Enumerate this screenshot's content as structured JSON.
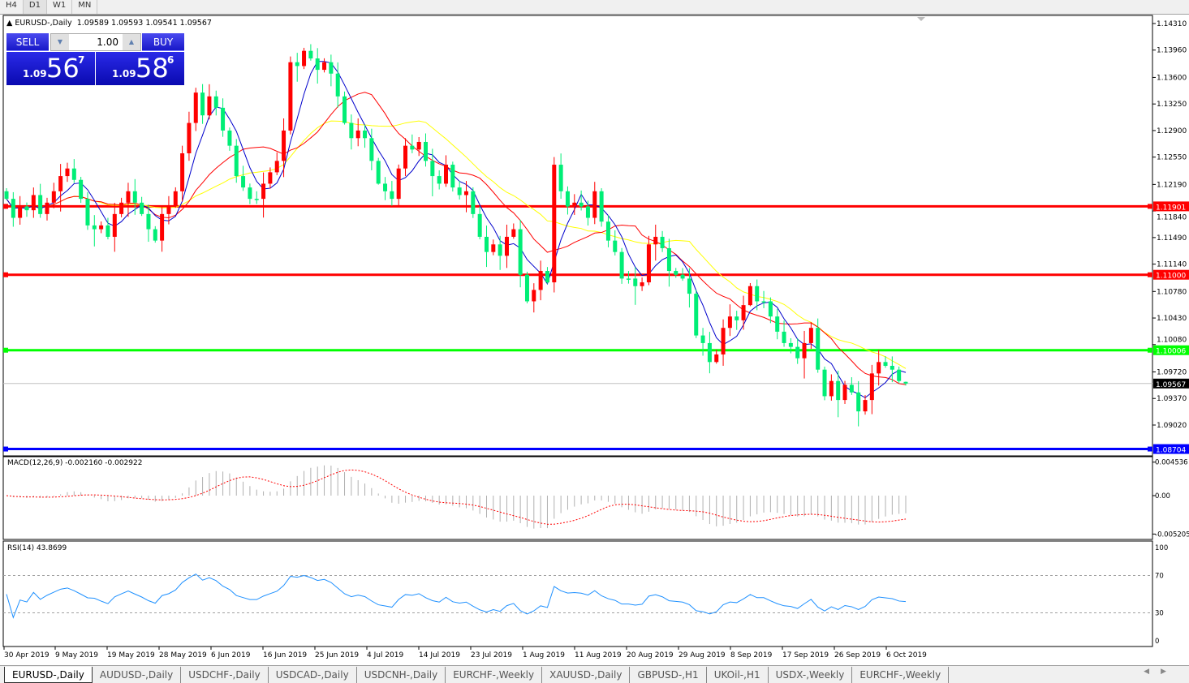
{
  "timeframes": [
    "H4",
    "D1",
    "W1",
    "MN"
  ],
  "active_timeframe": "D1",
  "chart": {
    "symbol": "EURUSD-,Daily",
    "ohlc": "1.09589 1.09593 1.09541 1.09567"
  },
  "trade_panel": {
    "sell_label": "SELL",
    "buy_label": "BUY",
    "lot": "1.00",
    "sell_prefix": "1.09",
    "sell_big": "56",
    "sell_sup": "7",
    "buy_prefix": "1.09",
    "buy_big": "58",
    "buy_sup": "6"
  },
  "price_axis": [
    "1.14310",
    "1.13960",
    "1.13600",
    "1.13250",
    "1.12900",
    "1.12550",
    "1.12190",
    "1.11840",
    "1.11490",
    "1.11140",
    "1.10780",
    "1.10430",
    "1.10080",
    "1.09720",
    "1.09370",
    "1.09020"
  ],
  "levels": [
    {
      "price": "1.11901",
      "color": "#ff0000"
    },
    {
      "price": "1.11000",
      "color": "#ff0000"
    },
    {
      "price": "1.10006",
      "color": "#00ff00"
    },
    {
      "price": "1.08704",
      "color": "#0000ff"
    }
  ],
  "current_price": "1.09567",
  "macd": {
    "label": "MACD(12,26,9) -0.002160 -0.002922",
    "axis": [
      "0.004536",
      "0.00",
      "-0.005205"
    ]
  },
  "rsi": {
    "label": "RSI(14) 43.8699",
    "axis": [
      "100",
      "70",
      "30",
      "0"
    ]
  },
  "dates": [
    "30 Apr 2019",
    "9 May 2019",
    "19 May 2019",
    "28 May 2019",
    "6 Jun 2019",
    "16 Jun 2019",
    "25 Jun 2019",
    "4 Jul 2019",
    "14 Jul 2019",
    "23 Jul 2019",
    "1 Aug 2019",
    "11 Aug 2019",
    "20 Aug 2019",
    "29 Aug 2019",
    "8 Sep 2019",
    "17 Sep 2019",
    "26 Sep 2019",
    "6 Oct 2019"
  ],
  "tabs": [
    "EURUSD-,Daily",
    "AUDUSD-,Daily",
    "USDCHF-,Daily",
    "USDCAD-,Daily",
    "USDCNH-,Daily",
    "EURCHF-,Weekly",
    "XAUUSD-,Daily",
    "GBPUSD-,H1",
    "UKOil-,H1",
    "USDX-,Weekly",
    "EURCHF-,Weekly"
  ],
  "colors": {
    "bull": "#ff0000",
    "bear": "#00ee76",
    "ma_fast": "#0000cc",
    "ma_mid": "#ff0000",
    "ma_slow": "#ffff00"
  },
  "chart_data": {
    "type": "candlestick",
    "closes": [
      1.12,
      1.1175,
      1.119,
      1.1185,
      1.1205,
      1.118,
      1.1195,
      1.121,
      1.123,
      1.124,
      1.1225,
      1.12,
      1.1165,
      1.116,
      1.1165,
      1.115,
      1.118,
      1.1195,
      1.121,
      1.1195,
      1.118,
      1.116,
      1.1145,
      1.118,
      1.119,
      1.121,
      1.126,
      1.13,
      1.134,
      1.131,
      1.1335,
      1.132,
      1.129,
      1.127,
      1.123,
      1.1215,
      1.12,
      1.12,
      1.122,
      1.1235,
      1.125,
      1.129,
      1.138,
      1.1375,
      1.1395,
      1.1385,
      1.137,
      1.138,
      1.1365,
      1.1335,
      1.13,
      1.128,
      1.129,
      1.128,
      1.125,
      1.122,
      1.121,
      1.12,
      1.124,
      1.127,
      1.1265,
      1.1275,
      1.125,
      1.123,
      1.122,
      1.1245,
      1.1215,
      1.1205,
      1.121,
      1.118,
      1.115,
      1.113,
      1.114,
      1.1125,
      1.115,
      1.116,
      1.11,
      1.1065,
      1.108,
      1.1105,
      1.109,
      1.1245,
      1.121,
      1.119,
      1.1195,
      1.119,
      1.1175,
      1.121,
      1.117,
      1.1145,
      1.113,
      1.1095,
      1.1095,
      1.1085,
      1.109,
      1.114,
      1.115,
      1.1135,
      1.1105,
      1.11,
      1.1095,
      1.1075,
      1.102,
      1.101,
      1.0985,
      1.0995,
      1.103,
      1.1045,
      1.104,
      1.106,
      1.1085,
      1.1065,
      1.1065,
      1.1045,
      1.1025,
      1.101,
      1.1005,
      1.099,
      1.101,
      1.103,
      1.0975,
      1.094,
      1.096,
      1.0935,
      1.0955,
      1.0945,
      1.092,
      1.0935,
      1.097,
      1.0985,
      1.098,
      1.0975,
      1.096,
      1.09567
    ],
    "last": {
      "open": 1.09589,
      "high": 1.09593,
      "low": 1.09541,
      "close": 1.09567
    },
    "ylim": [
      1.087,
      1.1431
    ]
  }
}
